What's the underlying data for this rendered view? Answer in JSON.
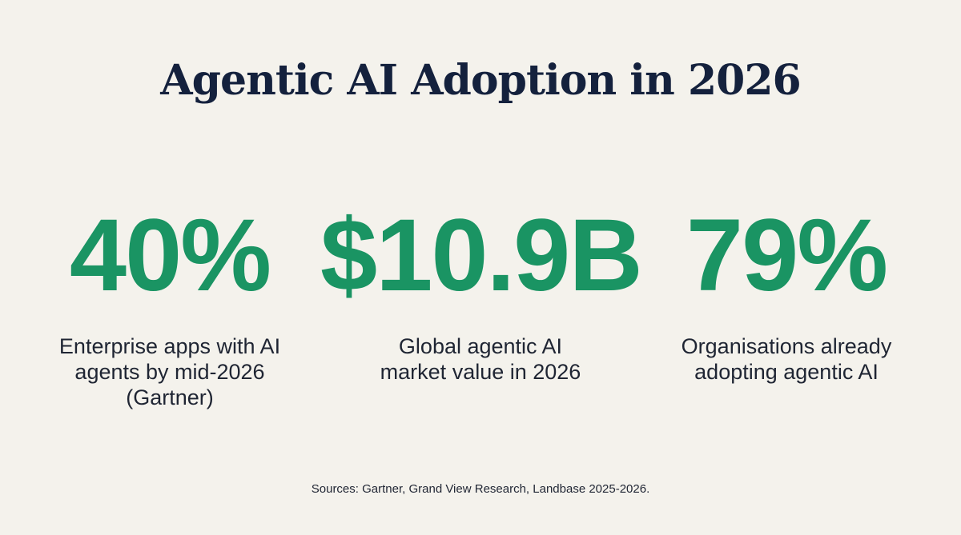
{
  "title": "Agentic AI Adoption in 2026",
  "stats": [
    {
      "value": "40%",
      "label": "Enterprise apps with AI agents by mid-2026 (Gartner)"
    },
    {
      "value": "$10.9B",
      "label": "Global agentic AI market value in 2026"
    },
    {
      "value": "79%",
      "label": "Organisations already adopting agentic AI"
    }
  ],
  "footer": "Sources: Gartner, Grand View Research, Landbase 2025-2026.",
  "colors": {
    "background": "#f4f2ec",
    "title": "#14213d",
    "accent": "#1a9463"
  }
}
